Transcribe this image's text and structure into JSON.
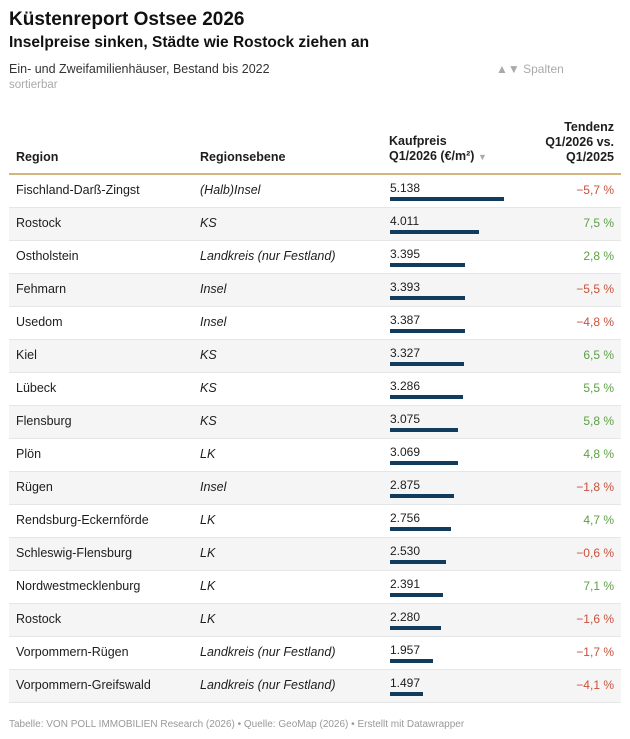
{
  "header": {
    "title": "Küstenreport Ostsee 2026",
    "subtitle": "Inselpreise sinken, Städte wie Rostock ziehen an",
    "description": "Ein- und Zweifamilienhäuser, Bestand bis 2022",
    "sortable_note": "sortierbar",
    "columns_button": "▲▼ Spalten"
  },
  "table": {
    "headers": {
      "region": "Region",
      "level": "Regionsebene",
      "price_line1": "Kaufpreis",
      "price_line2": "Q1/2026 (€/m²)",
      "price_sort_icon": "▼",
      "trend_line1": "Tendenz",
      "trend_line2": "Q1/2026 vs.",
      "trend_line3": "Q1/2025"
    },
    "bar_color": "#123c5e",
    "positive_color": "#5da045",
    "negative_color": "#c8513b",
    "price_max": 5138,
    "rows": [
      {
        "region": "Fischland-Darß-Zingst",
        "level": "(Halb)Insel",
        "price": "5.138",
        "price_value": 5138,
        "trend": "−5,7 %",
        "trend_sign": "neg"
      },
      {
        "region": "Rostock",
        "level": "KS",
        "price": "4.011",
        "price_value": 4011,
        "trend": "7,5 %",
        "trend_sign": "pos"
      },
      {
        "region": "Ostholstein",
        "level": "Landkreis (nur Festland)",
        "price": "3.395",
        "price_value": 3395,
        "trend": "2,8 %",
        "trend_sign": "pos"
      },
      {
        "region": "Fehmarn",
        "level": "Insel",
        "price": "3.393",
        "price_value": 3393,
        "trend": "−5,5 %",
        "trend_sign": "neg"
      },
      {
        "region": "Usedom",
        "level": "Insel",
        "price": "3.387",
        "price_value": 3387,
        "trend": "−4,8 %",
        "trend_sign": "neg"
      },
      {
        "region": "Kiel",
        "level": "KS",
        "price": "3.327",
        "price_value": 3327,
        "trend": "6,5 %",
        "trend_sign": "pos"
      },
      {
        "region": "Lübeck",
        "level": "KS",
        "price": "3.286",
        "price_value": 3286,
        "trend": "5,5 %",
        "trend_sign": "pos"
      },
      {
        "region": "Flensburg",
        "level": "KS",
        "price": "3.075",
        "price_value": 3075,
        "trend": "5,8 %",
        "trend_sign": "pos"
      },
      {
        "region": "Plön",
        "level": "LK",
        "price": "3.069",
        "price_value": 3069,
        "trend": "4,8 %",
        "trend_sign": "pos"
      },
      {
        "region": "Rügen",
        "level": "Insel",
        "price": "2.875",
        "price_value": 2875,
        "trend": "−1,8 %",
        "trend_sign": "neg"
      },
      {
        "region": "Rendsburg-Eckernförde",
        "level": "LK",
        "price": "2.756",
        "price_value": 2756,
        "trend": "4,7 %",
        "trend_sign": "pos"
      },
      {
        "region": "Schleswig-Flensburg",
        "level": "LK",
        "price": "2.530",
        "price_value": 2530,
        "trend": "−0,6 %",
        "trend_sign": "neg"
      },
      {
        "region": "Nordwestmecklenburg",
        "level": "LK",
        "price": "2.391",
        "price_value": 2391,
        "trend": "7,1 %",
        "trend_sign": "pos"
      },
      {
        "region": "Rostock",
        "level": "LK",
        "price": "2.280",
        "price_value": 2280,
        "trend": "−1,6 %",
        "trend_sign": "neg"
      },
      {
        "region": "Vorpommern-Rügen",
        "level": "Landkreis (nur Festland)",
        "price": "1.957",
        "price_value": 1957,
        "trend": "−1,7 %",
        "trend_sign": "neg"
      },
      {
        "region": "Vorpommern-Greifswald",
        "level": "Landkreis (nur Festland)",
        "price": "1.497",
        "price_value": 1497,
        "trend": "−4,1 %",
        "trend_sign": "neg"
      }
    ]
  },
  "footer": {
    "credits": "Tabelle: VON POLL IMMOBILIEN Research (2026) • Quelle: GeoMap (2026) • Erstellt mit Datawrapper"
  }
}
